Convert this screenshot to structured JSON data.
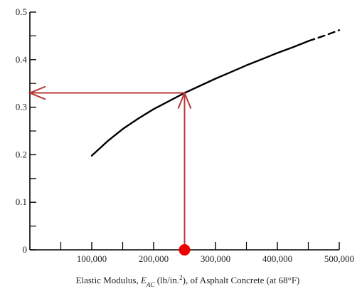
{
  "chart_data": {
    "type": "line",
    "title": "",
    "xlabel_parts": {
      "prefix": "Elastic Modulus, ",
      "symbol": "E",
      "subscript": "AC",
      "units_open": " (lb/in.",
      "units_sup": "2",
      "suffix": "), of Asphalt Concrete (at 68°F)"
    },
    "ylabel": "",
    "xlim": [
      0,
      500000
    ],
    "ylim": [
      0,
      0.5
    ],
    "x_ticks": [
      100000,
      200000,
      300000,
      400000,
      500000
    ],
    "x_tick_labels": [
      "100,000",
      "200,000",
      "300,000",
      "400,000",
      "500,000"
    ],
    "x_minor_ticks": [
      50000,
      150000,
      250000,
      350000,
      450000
    ],
    "y_ticks": [
      0,
      0.1,
      0.2,
      0.3,
      0.4,
      0.5
    ],
    "y_tick_labels": [
      "0",
      "0.1",
      "0.2",
      "0.3",
      "0.4",
      "0.5"
    ],
    "y_minor_ticks": [
      0.05,
      0.15,
      0.25,
      0.35,
      0.45
    ],
    "grid": false,
    "series": [
      {
        "style": "solid",
        "color": "#000000",
        "x": [
          100000,
          125000,
          150000,
          175000,
          200000,
          225000,
          250000,
          275000,
          300000,
          325000,
          350000,
          375000,
          400000,
          425000,
          450000
        ],
        "y": [
          0.198,
          0.228,
          0.254,
          0.276,
          0.296,
          0.313,
          0.33,
          0.345,
          0.36,
          0.374,
          0.388,
          0.401,
          0.414,
          0.426,
          0.439
        ]
      },
      {
        "style": "dashed",
        "color": "#000000",
        "x": [
          450000,
          475000,
          500000
        ],
        "y": [
          0.439,
          0.45,
          0.462
        ]
      }
    ],
    "annotation": {
      "color": "#b83a3a",
      "marker_color": "#ee0000",
      "x": 250000,
      "y": 0.33
    }
  }
}
